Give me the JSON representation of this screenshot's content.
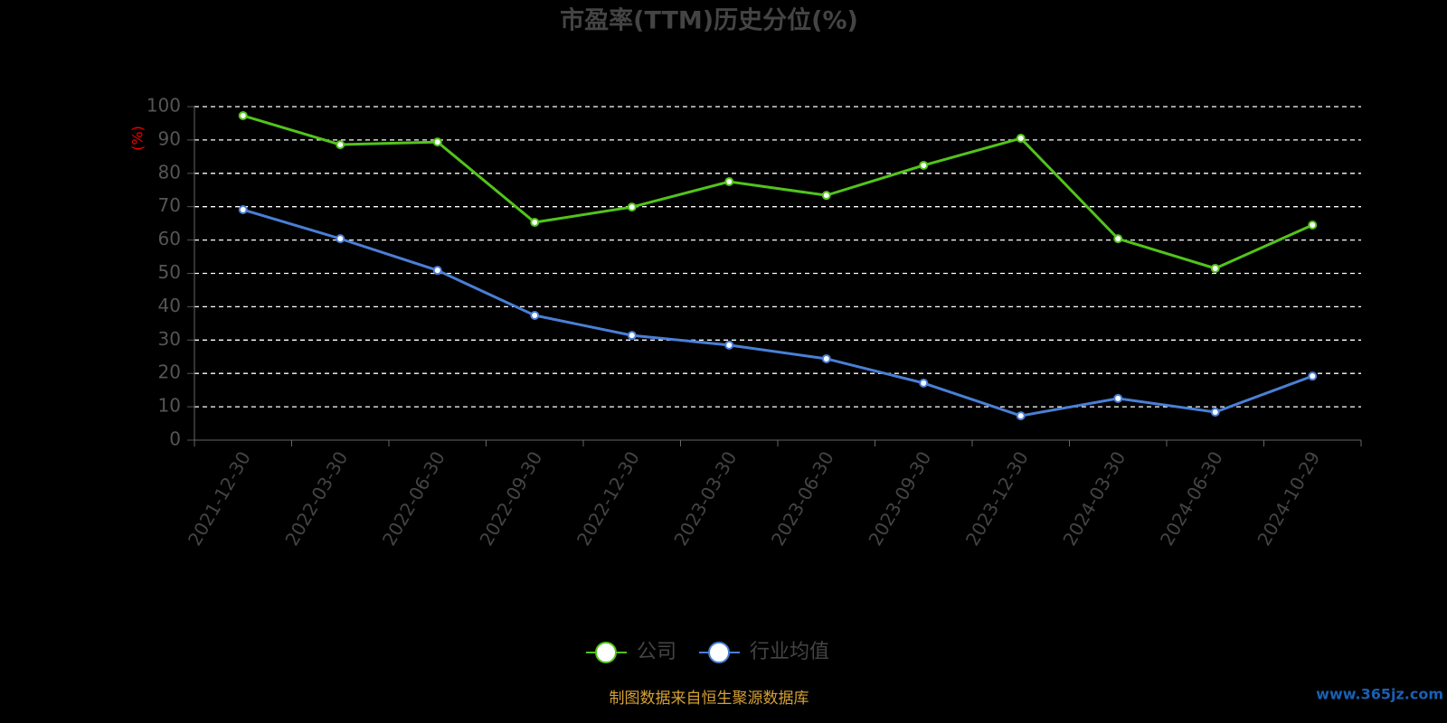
{
  "chart_data": {
    "type": "line",
    "title": "市盈率(TTM)历史分位(%)",
    "y_label": "(%)",
    "categories": [
      "2021-12-30",
      "2022-03-30",
      "2022-06-30",
      "2022-09-30",
      "2022-12-30",
      "2023-03-30",
      "2023-06-30",
      "2023-09-30",
      "2023-12-30",
      "2024-03-30",
      "2024-06-30",
      "2024-10-29"
    ],
    "series": [
      {
        "name": "公司",
        "color": "#52c41a",
        "values": [
          97.3,
          88.6,
          89.4,
          65.3,
          69.9,
          77.5,
          73.4,
          82.4,
          90.5,
          60.4,
          51.5,
          64.5
        ]
      },
      {
        "name": "行业均值",
        "color": "#4a7fd6",
        "values": [
          69.1,
          60.4,
          50.9,
          37.4,
          31.4,
          28.5,
          24.4,
          17.1,
          7.3,
          12.5,
          8.4,
          19.2
        ]
      }
    ],
    "ylim": [
      0,
      100
    ],
    "yticks": [
      0,
      10,
      20,
      30,
      40,
      50,
      60,
      70,
      80,
      90,
      100
    ],
    "grid": true,
    "source": "制图数据来自恒生聚源数据库",
    "watermark": "www.365jz.com"
  }
}
